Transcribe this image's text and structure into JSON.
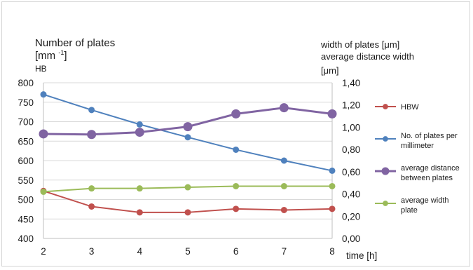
{
  "labels": {
    "left_title": "Number of plates",
    "left_unit_open": "[mm ",
    "left_unit_sup": "-1",
    "left_unit_close": "]",
    "left_hb": "HB",
    "right_title_1": "width of plates [μm]",
    "right_title_2": "average distance width",
    "right_title_3": "[μm]"
  },
  "chart_data": {
    "type": "line",
    "x": [
      2,
      3,
      4,
      5,
      6,
      7,
      8
    ],
    "xlabel": "time [h]",
    "y_left": {
      "ticks": [
        "400",
        "450",
        "500",
        "550",
        "600",
        "650",
        "700",
        "750",
        "800"
      ],
      "lim": [
        400,
        800
      ]
    },
    "y_right": {
      "ticks": [
        "0,00",
        "0,20",
        "0,40",
        "0,60",
        "0,80",
        "1,00",
        "1,20",
        "1,40"
      ],
      "lim": [
        0,
        1.4
      ]
    },
    "grid": true,
    "legend_position": "right",
    "series": [
      {
        "name": "HBW",
        "axis": "left",
        "color": "#c0504d",
        "values": [
          522,
          482,
          467,
          467,
          476,
          473,
          476
        ],
        "marker_size": 4.5,
        "line_width": 2
      },
      {
        "name": "No. of plates per millimeter",
        "legend_lines": [
          "No. of plates per",
          "millimeter"
        ],
        "axis": "left",
        "color": "#4f81bd",
        "values": [
          770,
          730,
          693,
          660,
          628,
          600,
          574
        ],
        "marker_size": 4.5,
        "line_width": 2
      },
      {
        "name": "average distance between plates",
        "legend_lines": [
          "average distance",
          "between plates"
        ],
        "axis": "right",
        "color": "#8064a2",
        "values": [
          0.94,
          0.935,
          0.955,
          1.005,
          1.12,
          1.175,
          1.12
        ],
        "marker_size": 6.5,
        "line_width": 3
      },
      {
        "name": "average width plate",
        "legend_lines": [
          "average width",
          "plate"
        ],
        "axis": "right",
        "color": "#9bbb59",
        "values": [
          0.42,
          0.45,
          0.45,
          0.46,
          0.47,
          0.47,
          0.47
        ],
        "marker_size": 4.5,
        "line_width": 2
      }
    ]
  }
}
